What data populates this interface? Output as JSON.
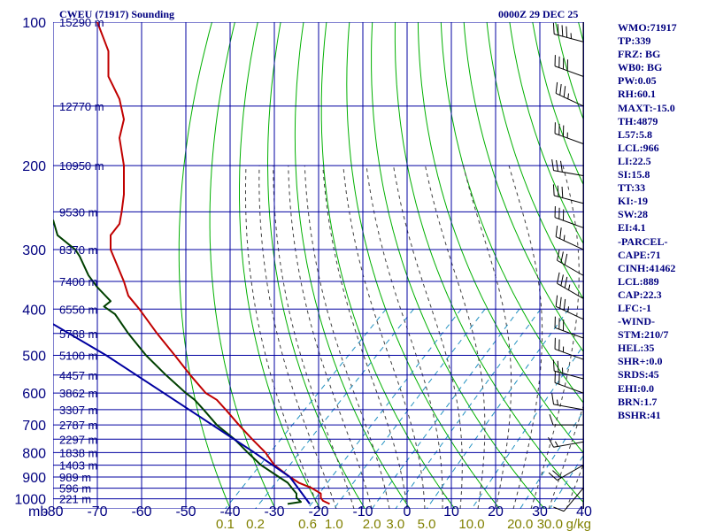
{
  "header": {
    "station": "CWEU (71917) Sounding",
    "time": "0000Z 29 DEC 25"
  },
  "indices": [
    "WMO:71917",
    "TP:339",
    "FRZ: BG",
    "WB0: BG",
    "PW:0.05",
    "RH:60.1",
    "MAXT:-15.0",
    "TH:4879",
    "L57:5.8",
    "LCL:966",
    "LI:22.5",
    "SI:15.8",
    "TT:33",
    "KI:-19",
    "SW:28",
    "EI:4.1",
    "-PARCEL-",
    "CAPE:71",
    "CINH:41462",
    "LCL:889",
    "CAP:22.3",
    "LFC:-1",
    "-WIND-",
    "STM:210/7",
    "HEL:35",
    "SHR+:0.0",
    "SRDS:45",
    "EHI:0.0",
    "BRN:1.7",
    "BSHR:41"
  ],
  "colors": {
    "grid": "#0000a0",
    "dry_adiabat": "#00b000",
    "moist_adiabat": "#404040",
    "mixing_ratio": "#2090c0",
    "temperature": "#c00000",
    "dewpoint": "#004000",
    "parcel": "#0000a0",
    "wind": "#000000"
  },
  "chart_data": {
    "type": "line",
    "chart_kind": "skew-T log-P",
    "pressure_scale": "log",
    "xlim": [
      -80,
      40
    ],
    "ylim": [
      1050,
      100
    ],
    "pressure_levels": [
      100,
      200,
      300,
      400,
      500,
      600,
      700,
      800,
      900,
      1000
    ],
    "pressure_ticks": [
      "100",
      "200",
      "300",
      "400",
      "500",
      "600",
      "700",
      "800",
      "900",
      "1000"
    ],
    "pressure_unit_label": "mb",
    "temperature_ticks": [
      -80,
      -70,
      -60,
      -50,
      -40,
      -30,
      -20,
      -10,
      0,
      10,
      20,
      30,
      40
    ],
    "temperature_tick_labels": [
      "-80",
      "-70",
      "-60",
      "-50",
      "-40",
      "-30",
      "-20",
      "-10",
      "0",
      "10",
      "20",
      "30",
      "40"
    ],
    "mixing_ratio_labels": [
      {
        "label": "0.1",
        "value": 0.1
      },
      {
        "label": "0.2",
        "value": 0.2
      },
      {
        "label": "0.6",
        "value": 0.6
      },
      {
        "label": "1.0",
        "value": 1.0
      },
      {
        "label": "2.0",
        "value": 2.0
      },
      {
        "label": "3.0",
        "value": 3.0
      },
      {
        "label": "5.0",
        "value": 5.0
      },
      {
        "label": "10.0",
        "value": 10.0
      },
      {
        "label": "20.0",
        "value": 20.0
      },
      {
        "label": "30.0",
        "value": 30.0
      }
    ],
    "mixing_ratio_unit": "g/kg",
    "height_labels": [
      {
        "p": 100,
        "label": "15290 m"
      },
      {
        "p": 150,
        "label": "12770 m"
      },
      {
        "p": 200,
        "label": "10950 m"
      },
      {
        "p": 250,
        "label": "9530 m"
      },
      {
        "p": 300,
        "label": "8370 m"
      },
      {
        "p": 350,
        "label": "7400 m"
      },
      {
        "p": 400,
        "label": "6550 m"
      },
      {
        "p": 450,
        "label": "5788 m"
      },
      {
        "p": 500,
        "label": "5100 m"
      },
      {
        "p": 550,
        "label": "4457 m"
      },
      {
        "p": 600,
        "label": "3862 m"
      },
      {
        "p": 650,
        "label": "3307 m"
      },
      {
        "p": 700,
        "label": "2787 m"
      },
      {
        "p": 750,
        "label": "2297 m"
      },
      {
        "p": 800,
        "label": "1838 m"
      },
      {
        "p": 850,
        "label": "1403 m"
      },
      {
        "p": 900,
        "label": "989 m"
      },
      {
        "p": 950,
        "label": "596 m"
      },
      {
        "p": 1000,
        "label": "221 m"
      }
    ],
    "series": [
      {
        "name": "temperature",
        "points": [
          {
            "p": 1025,
            "t": -17.5
          },
          {
            "p": 1010,
            "t": -19
          },
          {
            "p": 995,
            "t": -19.5
          },
          {
            "p": 975,
            "t": -19.5
          },
          {
            "p": 950,
            "t": -21.5
          },
          {
            "p": 925,
            "t": -24.5
          },
          {
            "p": 900,
            "t": -26.5
          },
          {
            "p": 850,
            "t": -30
          },
          {
            "p": 800,
            "t": -32
          },
          {
            "p": 750,
            "t": -35
          },
          {
            "p": 700,
            "t": -38
          },
          {
            "p": 650,
            "t": -41
          },
          {
            "p": 620,
            "t": -43
          },
          {
            "p": 600,
            "t": -45.5
          },
          {
            "p": 550,
            "t": -49
          },
          {
            "p": 500,
            "t": -52.5
          },
          {
            "p": 450,
            "t": -56.5
          },
          {
            "p": 400,
            "t": -60.5
          },
          {
            "p": 375,
            "t": -63
          },
          {
            "p": 350,
            "t": -64
          },
          {
            "p": 300,
            "t": -67
          },
          {
            "p": 280,
            "t": -67
          },
          {
            "p": 265,
            "t": -65
          },
          {
            "p": 250,
            "t": -64.5
          },
          {
            "p": 230,
            "t": -64
          },
          {
            "p": 210,
            "t": -64
          },
          {
            "p": 200,
            "t": -64
          },
          {
            "p": 175,
            "t": -65
          },
          {
            "p": 160,
            "t": -64
          },
          {
            "p": 145,
            "t": -65
          },
          {
            "p": 130,
            "t": -67.5
          },
          {
            "p": 115,
            "t": -67.5
          },
          {
            "p": 100,
            "t": -70
          }
        ]
      },
      {
        "name": "dewpoint",
        "points": [
          {
            "p": 1025,
            "t": -27
          },
          {
            "p": 1015,
            "t": -24
          },
          {
            "p": 995,
            "t": -25
          },
          {
            "p": 975,
            "t": -25
          },
          {
            "p": 950,
            "t": -26
          },
          {
            "p": 925,
            "t": -27
          },
          {
            "p": 900,
            "t": -29
          },
          {
            "p": 850,
            "t": -33
          },
          {
            "p": 800,
            "t": -36
          },
          {
            "p": 750,
            "t": -39
          },
          {
            "p": 700,
            "t": -43
          },
          {
            "p": 650,
            "t": -46
          },
          {
            "p": 620,
            "t": -48
          },
          {
            "p": 600,
            "t": -50
          },
          {
            "p": 550,
            "t": -54.5
          },
          {
            "p": 500,
            "t": -59
          },
          {
            "p": 450,
            "t": -63
          },
          {
            "p": 410,
            "t": -66
          },
          {
            "p": 395,
            "t": -68.5
          },
          {
            "p": 385,
            "t": -67
          },
          {
            "p": 360,
            "t": -70
          },
          {
            "p": 340,
            "t": -72
          },
          {
            "p": 310,
            "t": -74
          },
          {
            "p": 300,
            "t": -75
          },
          {
            "p": 280,
            "t": -79
          },
          {
            "p": 260,
            "t": -80
          }
        ]
      },
      {
        "name": "parcel",
        "points": [
          {
            "p": 1025,
            "t": -22
          },
          {
            "p": 900,
            "t": -26.5
          },
          {
            "p": 800,
            "t": -34.5
          },
          {
            "p": 700,
            "t": -44
          },
          {
            "p": 600,
            "t": -55
          },
          {
            "p": 500,
            "t": -68
          },
          {
            "p": 430,
            "t": -80
          }
        ]
      }
    ],
    "wind_barbs": [
      {
        "p": 110,
        "dir": 285,
        "kt": 45
      },
      {
        "p": 130,
        "dir": 290,
        "kt": 40
      },
      {
        "p": 150,
        "dir": 295,
        "kt": 35
      },
      {
        "p": 180,
        "dir": 290,
        "kt": 35
      },
      {
        "p": 210,
        "dir": 280,
        "kt": 30
      },
      {
        "p": 240,
        "dir": 285,
        "kt": 30
      },
      {
        "p": 270,
        "dir": 290,
        "kt": 30
      },
      {
        "p": 300,
        "dir": 295,
        "kt": 25
      },
      {
        "p": 340,
        "dir": 300,
        "kt": 30
      },
      {
        "p": 380,
        "dir": 300,
        "kt": 35
      },
      {
        "p": 420,
        "dir": 295,
        "kt": 35
      },
      {
        "p": 460,
        "dir": 290,
        "kt": 30
      },
      {
        "p": 510,
        "dir": 290,
        "kt": 25
      },
      {
        "p": 560,
        "dir": 285,
        "kt": 25
      },
      {
        "p": 600,
        "dir": 290,
        "kt": 20
      },
      {
        "p": 650,
        "dir": 280,
        "kt": 15
      },
      {
        "p": 700,
        "dir": 270,
        "kt": 10
      },
      {
        "p": 760,
        "dir": 260,
        "kt": 15
      },
      {
        "p": 850,
        "dir": 240,
        "kt": 20
      },
      {
        "p": 950,
        "dir": 220,
        "kt": 10
      }
    ]
  }
}
